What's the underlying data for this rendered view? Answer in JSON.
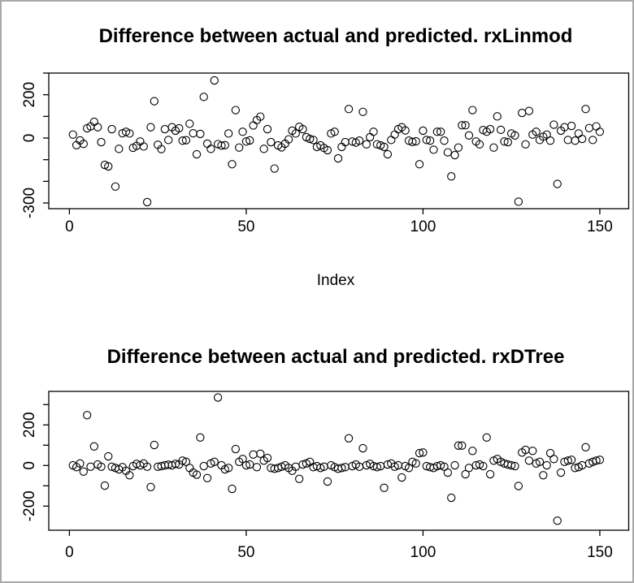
{
  "window": {
    "background": "#ffffff",
    "border_color": "#a8a8a8",
    "point_color": "#000000",
    "axis_color": "#000000"
  },
  "chart_data": [
    {
      "type": "scatter",
      "title": "Difference between actual and predicted. rxLinmod",
      "xlabel": "Index",
      "ylabel": "",
      "marker": "open-circle",
      "grid": false,
      "xlim": [
        -6,
        158
      ],
      "ylim": [
        -326,
        300
      ],
      "x_ticks": [
        {
          "v": 0,
          "label": "0"
        },
        {
          "v": 50,
          "label": "50"
        },
        {
          "v": 100,
          "label": "100"
        },
        {
          "v": 150,
          "label": "150"
        }
      ],
      "y_ticks": [
        {
          "v": 300,
          "label": ""
        },
        {
          "v": 200,
          "label": "200"
        },
        {
          "v": 100,
          "label": ""
        },
        {
          "v": 0,
          "label": "0"
        },
        {
          "v": -100,
          "label": ""
        },
        {
          "v": -200,
          "label": ""
        },
        {
          "v": -300,
          "label": "-300"
        }
      ],
      "x_start": 1,
      "values": [
        16,
        -33,
        -11,
        -27,
        45,
        54,
        75,
        50,
        -19,
        -124,
        -131,
        41,
        -224,
        -50,
        22,
        29,
        21,
        -45,
        -36,
        -16,
        -39,
        -296,
        50,
        170,
        -31,
        -51,
        41,
        -9,
        50,
        34,
        45,
        -12,
        -10,
        66,
        22,
        -75,
        19,
        190,
        -26,
        -50,
        266,
        -28,
        -35,
        -33,
        21,
        -121,
        129,
        -44,
        29,
        -16,
        -11,
        58,
        83,
        99,
        -50,
        41,
        -19,
        -141,
        -34,
        -43,
        -26,
        -6,
        34,
        21,
        52,
        41,
        4,
        -4,
        -9,
        -41,
        -34,
        -46,
        -56,
        21,
        29,
        -94,
        -41,
        -19,
        134,
        -16,
        -21,
        -12,
        121,
        -29,
        4,
        29,
        -29,
        -34,
        -41,
        -75,
        -9,
        16,
        41,
        50,
        35,
        -12,
        -18,
        -15,
        -121,
        34,
        -9,
        -12,
        -54,
        29,
        29,
        -12,
        -66,
        -177,
        -79,
        -44,
        59,
        59,
        12,
        129,
        -16,
        -29,
        37,
        29,
        41,
        -44,
        100,
        38,
        -16,
        -19,
        21,
        12,
        -294,
        116,
        -29,
        125,
        16,
        29,
        -9,
        6,
        16,
        -12,
        62,
        -212,
        34,
        50,
        -9,
        56,
        -12,
        21,
        -4,
        134,
        46,
        -9,
        54,
        29
      ]
    },
    {
      "type": "scatter",
      "title": "Difference between actual and predicted. rxDTree",
      "xlabel": "",
      "ylabel": "",
      "marker": "open-circle",
      "grid": false,
      "xlim": [
        -6,
        158
      ],
      "ylim": [
        -319,
        365
      ],
      "x_ticks": [
        {
          "v": 0,
          "label": "0"
        },
        {
          "v": 50,
          "label": "50"
        },
        {
          "v": 100,
          "label": "100"
        },
        {
          "v": 150,
          "label": "150"
        }
      ],
      "y_ticks": [
        {
          "v": 300,
          "label": ""
        },
        {
          "v": 200,
          "label": "200"
        },
        {
          "v": 100,
          "label": ""
        },
        {
          "v": 0,
          "label": "0"
        },
        {
          "v": -100,
          "label": ""
        },
        {
          "v": -200,
          "label": "-200"
        }
      ],
      "x_start": 1,
      "values": [
        1,
        -8,
        10,
        -30,
        248,
        -6,
        94,
        5,
        -6,
        -99,
        45,
        -6,
        -12,
        -19,
        -8,
        -26,
        -48,
        -3,
        8,
        1,
        10,
        -6,
        -106,
        101,
        -6,
        -3,
        1,
        4,
        1,
        8,
        5,
        24,
        18,
        -12,
        -35,
        -45,
        138,
        -3,
        -62,
        10,
        18,
        335,
        1,
        -19,
        -12,
        -115,
        81,
        18,
        32,
        1,
        5,
        54,
        -8,
        58,
        24,
        37,
        -12,
        -16,
        -12,
        -6,
        1,
        -12,
        -26,
        -6,
        -66,
        5,
        10,
        18,
        -8,
        -3,
        -12,
        -6,
        -79,
        1,
        -8,
        -16,
        -12,
        -8,
        134,
        -3,
        5,
        -6,
        85,
        1,
        8,
        -3,
        -8,
        -3,
        -110,
        5,
        10,
        -6,
        1,
        -59,
        -3,
        -12,
        18,
        10,
        61,
        64,
        -3,
        -8,
        -12,
        -3,
        1,
        -6,
        -35,
        -159,
        1,
        98,
        98,
        -43,
        -12,
        72,
        1,
        5,
        -3,
        138,
        -43,
        24,
        32,
        18,
        10,
        5,
        1,
        -3,
        -101,
        64,
        77,
        24,
        72,
        10,
        18,
        -48,
        1,
        61,
        32,
        -272,
        -35,
        18,
        24,
        28,
        -12,
        -8,
        1,
        90,
        10,
        18,
        24,
        28
      ]
    }
  ]
}
